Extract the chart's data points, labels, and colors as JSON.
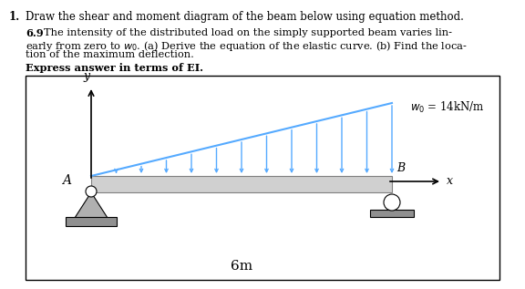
{
  "title_number": "1.",
  "title_text": "Draw the shear and moment diagram of the beam below using equation method.",
  "problem_number": "6.9",
  "problem_line1": "The intensity of the distributed load on the simply supported beam varies lin-",
  "problem_line2": "early from zero to $w_0$. (a) Derive the equation of the elastic curve. (b) Find the loca-",
  "problem_line3": "tion of the maximum deflection.",
  "bold_label": "Express answer in terms of EI.",
  "w0_label": "$w_0$ = 14kN/m",
  "length_label": "6m",
  "point_A": "A",
  "point_B": "B",
  "axis_x": "x",
  "axis_y": "y",
  "beam_color": "#d0d0d0",
  "beam_edge_color": "#808080",
  "load_color": "#55aaff",
  "support_color": "#b0b0b0",
  "support_dark": "#909090",
  "bg_color": "#ffffff",
  "text_color": "#000000",
  "title_fontsize": 8.5,
  "body_fontsize": 8.2,
  "bold_fontsize": 8.2
}
